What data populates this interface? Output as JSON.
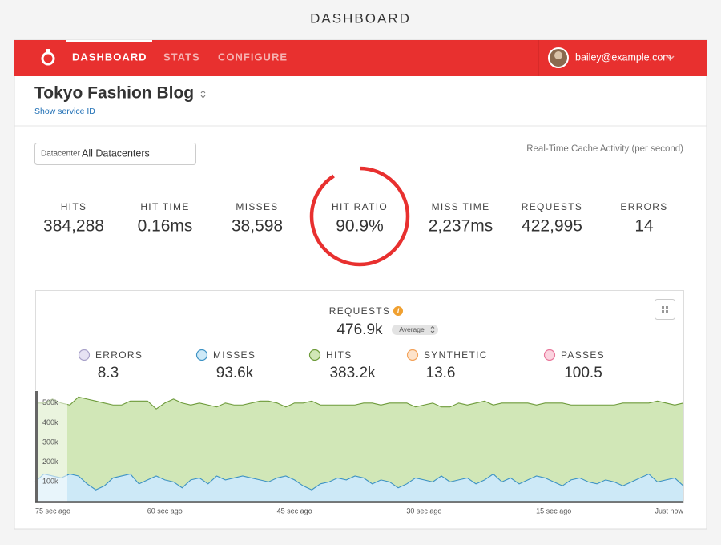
{
  "page_title": "DASHBOARD",
  "nav": {
    "items": [
      "DASHBOARD",
      "STATS",
      "CONFIGURE"
    ],
    "user": "bailey@example.com"
  },
  "service": {
    "name": "Tokyo Fashion Blog",
    "link": "Show service ID"
  },
  "datacenter": {
    "label": "Datacenter",
    "value": "All Datacenters"
  },
  "activity_label": "Real-Time Cache Activity (per second)",
  "stats": [
    {
      "label": "HITS",
      "value": "384,288"
    },
    {
      "label": "HIT TIME",
      "value": "0.16ms"
    },
    {
      "label": "MISSES",
      "value": "38,598"
    },
    {
      "label": "HIT RATIO",
      "value": 90.9,
      "value_label": "90.9%"
    },
    {
      "label": "MISS TIME",
      "value": "2,237ms"
    },
    {
      "label": "REQUESTS",
      "value": "422,995"
    },
    {
      "label": "ERRORS",
      "value": "14"
    }
  ],
  "chart_data": {
    "type": "area",
    "title": "REQUESTS",
    "total": "476.9k",
    "aggregate": "Average",
    "x": [
      75,
      74,
      73,
      72,
      71,
      70,
      69,
      68,
      67,
      66,
      65,
      64,
      63,
      62,
      61,
      60,
      59,
      58,
      57,
      56,
      55,
      54,
      53,
      52,
      51,
      50,
      49,
      48,
      47,
      46,
      45,
      44,
      43,
      42,
      41,
      40,
      39,
      38,
      37,
      36,
      35,
      34,
      33,
      32,
      31,
      30,
      29,
      28,
      27,
      26,
      25,
      24,
      23,
      22,
      21,
      20,
      19,
      18,
      17,
      16,
      15,
      14,
      13,
      12,
      11,
      10,
      9,
      8,
      7,
      6,
      5,
      4,
      3,
      2,
      1,
      0
    ],
    "xlim": [
      75,
      0
    ],
    "xticks": [
      {
        "value": 75,
        "label": "75 sec ago"
      },
      {
        "value": 60,
        "label": "60 sec ago"
      },
      {
        "value": 45,
        "label": "45 sec ago"
      },
      {
        "value": 30,
        "label": "30 sec ago"
      },
      {
        "value": 15,
        "label": "15 sec ago"
      },
      {
        "value": 0,
        "label": "Just now"
      }
    ],
    "ylim": [
      0,
      560000
    ],
    "yticks": [
      {
        "value": 100000,
        "label": "100k"
      },
      {
        "value": 200000,
        "label": "200k"
      },
      {
        "value": 300000,
        "label": "300k"
      },
      {
        "value": 400000,
        "label": "400k"
      },
      {
        "value": 500000,
        "label": "500k"
      }
    ],
    "grid": false,
    "series": [
      {
        "name": "ERRORS",
        "summary": "8.3",
        "color": "#a9a2c9",
        "fill": "#e6e2f3"
      },
      {
        "name": "MISSES",
        "summary": "93.6k",
        "color": "#3d92c4",
        "fill": "#cde9f7",
        "values": [
          100000,
          140000,
          130000,
          120000,
          140000,
          130000,
          90000,
          60000,
          80000,
          120000,
          130000,
          140000,
          90000,
          110000,
          130000,
          110000,
          100000,
          70000,
          110000,
          120000,
          90000,
          130000,
          110000,
          120000,
          130000,
          120000,
          110000,
          100000,
          120000,
          130000,
          110000,
          80000,
          60000,
          90000,
          100000,
          120000,
          110000,
          130000,
          120000,
          90000,
          110000,
          100000,
          70000,
          90000,
          120000,
          110000,
          100000,
          130000,
          100000,
          110000,
          120000,
          90000,
          110000,
          140000,
          100000,
          120000,
          90000,
          110000,
          130000,
          120000,
          100000,
          80000,
          110000,
          120000,
          100000,
          90000,
          110000,
          100000,
          80000,
          100000,
          120000,
          140000,
          100000,
          110000,
          120000,
          80000
        ]
      },
      {
        "name": "HITS",
        "summary": "383.2k",
        "color": "#6e9b3b",
        "fill": "#d1e7b7",
        "values": [
          400000,
          360000,
          390000,
          380000,
          350000,
          400000,
          430000,
          450000,
          420000,
          370000,
          360000,
          370000,
          420000,
          400000,
          340000,
          390000,
          420000,
          430000,
          380000,
          380000,
          400000,
          350000,
          390000,
          370000,
          360000,
          380000,
          400000,
          410000,
          380000,
          350000,
          390000,
          420000,
          450000,
          400000,
          390000,
          370000,
          380000,
          360000,
          380000,
          410000,
          380000,
          400000,
          430000,
          410000,
          360000,
          380000,
          400000,
          350000,
          380000,
          390000,
          370000,
          410000,
          400000,
          350000,
          400000,
          380000,
          410000,
          390000,
          360000,
          380000,
          400000,
          420000,
          380000,
          370000,
          390000,
          400000,
          380000,
          390000,
          420000,
          400000,
          380000,
          360000,
          410000,
          390000,
          370000,
          420000
        ]
      },
      {
        "name": "SYNTHETIC",
        "summary": "13.6",
        "color": "#f3a25a",
        "fill": "#fde3cb"
      },
      {
        "name": "PASSES",
        "summary": "100.5",
        "color": "#e8779b",
        "fill": "#fbd3df"
      }
    ]
  }
}
